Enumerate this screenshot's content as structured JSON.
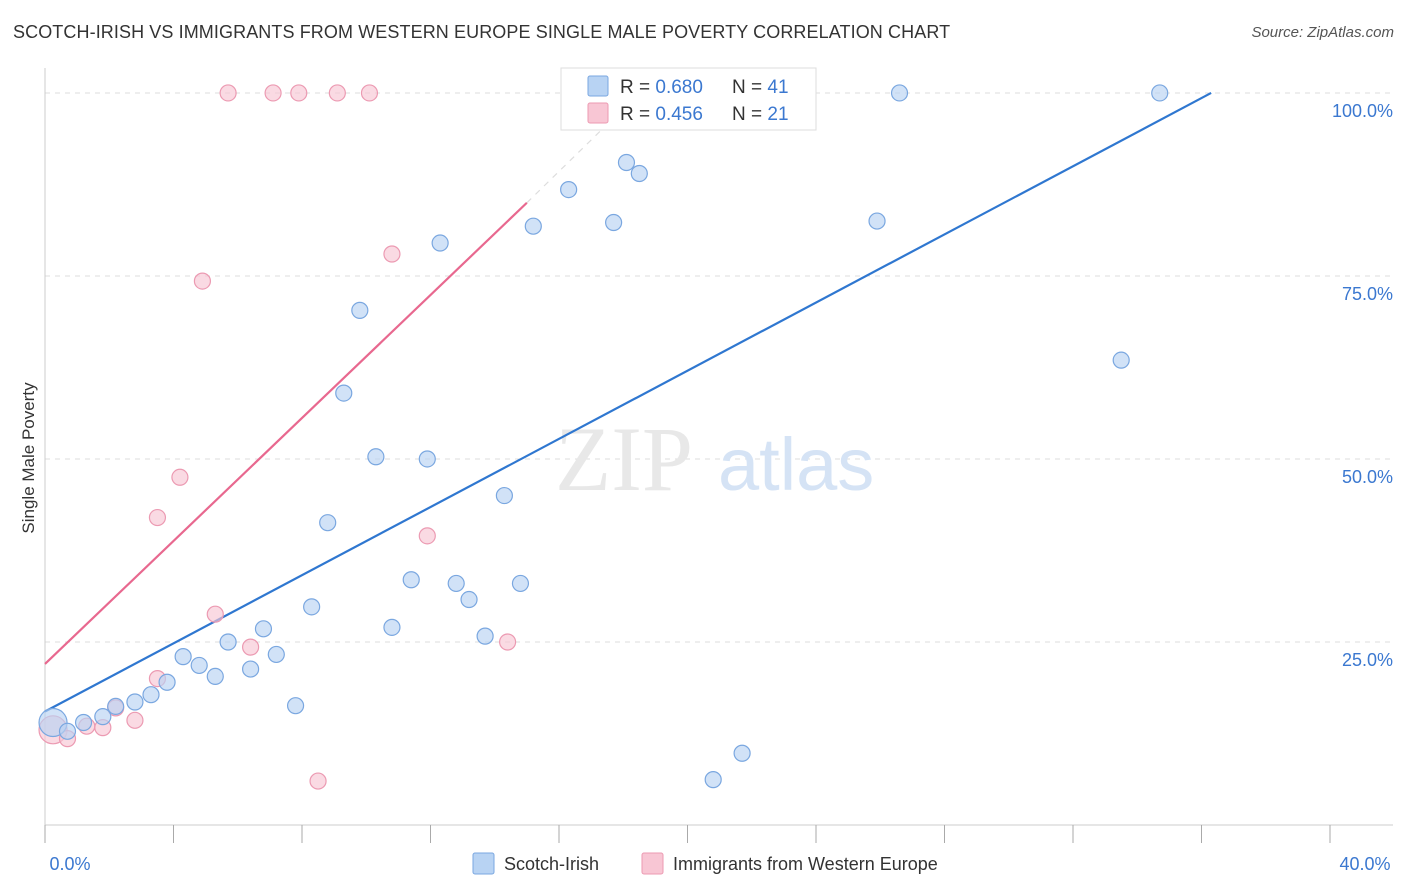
{
  "header": {
    "title": "SCOTCH-IRISH VS IMMIGRANTS FROM WESTERN EUROPE SINGLE MALE POVERTY CORRELATION CHART",
    "source": "Source: ZipAtlas.com"
  },
  "watermark": {
    "zip": "ZIP",
    "atlas": "atlas"
  },
  "stats_legend": [
    {
      "r_label": "R = ",
      "r_value": "0.680",
      "n_label": "N = ",
      "n_value": "41"
    },
    {
      "r_label": "R = ",
      "r_value": "0.456",
      "n_label": "N = ",
      "n_value": "21"
    }
  ],
  "colors": {
    "blue_fill": "#b8d3f3",
    "blue_stroke": "#7aa7e0",
    "blue_line": "#2f77d0",
    "pink_fill": "#f8c6d4",
    "pink_stroke": "#ec9ab2",
    "pink_line": "#e8688f",
    "accent_text": "#3b78d0",
    "grid": "#dddddd"
  },
  "chart_data": {
    "type": "scatter",
    "title": "SCOTCH-IRISH VS IMMIGRANTS FROM WESTERN EUROPE SINGLE MALE POVERTY CORRELATION CHART",
    "xlabel": "",
    "ylabel": "Single Male Poverty",
    "xlim": [
      0,
      40
    ],
    "ylim": [
      0,
      103
    ],
    "x_tick_labels": [
      "0.0%",
      "40.0%"
    ],
    "y_tick_labels": [
      {
        "value": 100,
        "label": "100.0%"
      },
      {
        "value": 75,
        "label": "75.0%"
      },
      {
        "value": 50,
        "label": "50.0%"
      },
      {
        "value": 25,
        "label": "25.0%"
      }
    ],
    "legend_position": "bottom-center",
    "grid": true,
    "series": [
      {
        "name": "Scotch-Irish",
        "color": "blue",
        "trend": {
          "x": [
            0,
            36.3
          ],
          "y": [
            15.5,
            100.0
          ]
        },
        "points": [
          {
            "x": 0.25,
            "y": 14.0,
            "big": true
          },
          {
            "x": 0.7,
            "y": 12.8
          },
          {
            "x": 1.2,
            "y": 14.0
          },
          {
            "x": 1.8,
            "y": 14.8
          },
          {
            "x": 2.2,
            "y": 16.2
          },
          {
            "x": 2.8,
            "y": 16.8
          },
          {
            "x": 3.3,
            "y": 17.8
          },
          {
            "x": 3.8,
            "y": 19.5
          },
          {
            "x": 4.3,
            "y": 23.0
          },
          {
            "x": 4.8,
            "y": 21.8
          },
          {
            "x": 5.3,
            "y": 20.3
          },
          {
            "x": 5.7,
            "y": 25.0
          },
          {
            "x": 6.4,
            "y": 21.3
          },
          {
            "x": 6.8,
            "y": 26.8
          },
          {
            "x": 7.2,
            "y": 23.3
          },
          {
            "x": 7.8,
            "y": 16.3
          },
          {
            "x": 8.3,
            "y": 29.8
          },
          {
            "x": 8.8,
            "y": 41.3
          },
          {
            "x": 9.3,
            "y": 59.0
          },
          {
            "x": 9.8,
            "y": 70.3
          },
          {
            "x": 10.3,
            "y": 50.3
          },
          {
            "x": 10.8,
            "y": 27.0
          },
          {
            "x": 11.4,
            "y": 33.5
          },
          {
            "x": 11.9,
            "y": 50.0
          },
          {
            "x": 12.3,
            "y": 79.5
          },
          {
            "x": 12.8,
            "y": 33.0
          },
          {
            "x": 13.2,
            "y": 30.8
          },
          {
            "x": 13.7,
            "y": 25.8
          },
          {
            "x": 14.3,
            "y": 45.0
          },
          {
            "x": 14.8,
            "y": 33.0
          },
          {
            "x": 15.2,
            "y": 81.8
          },
          {
            "x": 16.3,
            "y": 86.8
          },
          {
            "x": 17.7,
            "y": 82.3
          },
          {
            "x": 18.1,
            "y": 90.5
          },
          {
            "x": 18.5,
            "y": 89.0
          },
          {
            "x": 20.8,
            "y": 6.2
          },
          {
            "x": 21.7,
            "y": 9.8
          },
          {
            "x": 25.9,
            "y": 82.5
          },
          {
            "x": 26.6,
            "y": 100.0
          },
          {
            "x": 33.5,
            "y": 63.5
          },
          {
            "x": 34.7,
            "y": 100.0
          }
        ]
      },
      {
        "name": "Immigrants from Western Europe",
        "color": "pink",
        "trend": {
          "x": [
            0,
            15.0
          ],
          "y": [
            22.0,
            85.0
          ]
        },
        "trend_dashed": {
          "x": [
            15.0,
            18.5
          ],
          "y": [
            85.0,
            100.0
          ]
        },
        "points": [
          {
            "x": 0.25,
            "y": 13.0,
            "big": true
          },
          {
            "x": 0.7,
            "y": 11.8
          },
          {
            "x": 1.3,
            "y": 13.5
          },
          {
            "x": 1.8,
            "y": 13.3
          },
          {
            "x": 2.2,
            "y": 16.0
          },
          {
            "x": 2.8,
            "y": 14.3
          },
          {
            "x": 3.5,
            "y": 42.0
          },
          {
            "x": 3.5,
            "y": 20.0
          },
          {
            "x": 4.2,
            "y": 47.5
          },
          {
            "x": 4.9,
            "y": 74.3
          },
          {
            "x": 5.3,
            "y": 28.8
          },
          {
            "x": 5.7,
            "y": 100.0
          },
          {
            "x": 6.4,
            "y": 24.3
          },
          {
            "x": 7.1,
            "y": 100.0
          },
          {
            "x": 7.9,
            "y": 100.0
          },
          {
            "x": 8.5,
            "y": 6.0
          },
          {
            "x": 9.1,
            "y": 100.0
          },
          {
            "x": 10.1,
            "y": 100.0
          },
          {
            "x": 10.8,
            "y": 78.0
          },
          {
            "x": 11.9,
            "y": 39.5
          },
          {
            "x": 14.4,
            "y": 25.0
          }
        ]
      }
    ]
  }
}
